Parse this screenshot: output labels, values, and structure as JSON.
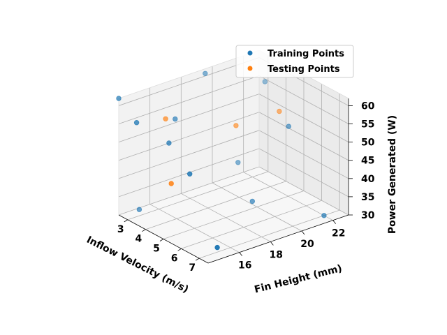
{
  "chart_data": {
    "type": "scatter3d",
    "title": "",
    "xlabel": "Inflow Velocity (m/s)",
    "ylabel": "Fin Height (mm)",
    "zlabel": "Power Generated (W)",
    "xlim": [
      2.5,
      7.5
    ],
    "ylim": [
      14,
      23
    ],
    "zlim": [
      30,
      62
    ],
    "xticks": [
      3,
      4,
      5,
      6,
      7
    ],
    "yticks": [
      16,
      18,
      20,
      22
    ],
    "zticks": [
      30,
      35,
      40,
      45,
      50,
      55,
      60
    ],
    "grid": true,
    "legend": {
      "placement": "top-right"
    },
    "series": [
      {
        "name": "Training Points",
        "color": "#1f77b4",
        "points": [
          {
            "x": 2.5,
            "y": 14,
            "z": 62
          },
          {
            "x": 2.6,
            "y": 15.2,
            "z": 30
          },
          {
            "x": 3.5,
            "y": 14,
            "z": 58
          },
          {
            "x": 4.0,
            "y": 15.5,
            "z": 51.5
          },
          {
            "x": 3.3,
            "y": 16.7,
            "z": 54.5
          },
          {
            "x": 2.8,
            "y": 19.2,
            "z": 62
          },
          {
            "x": 5.6,
            "y": 15.0,
            "z": 48
          },
          {
            "x": 3.5,
            "y": 20.5,
            "z": 37.5
          },
          {
            "x": 7.4,
            "y": 14.7,
            "z": 33
          },
          {
            "x": 5.0,
            "y": 19.7,
            "z": 32
          },
          {
            "x": 5.2,
            "y": 21.8,
            "z": 50
          },
          {
            "x": 7.0,
            "y": 22.0,
            "z": 30
          },
          {
            "x": 3.0,
            "y": 22.8,
            "z": 55
          }
        ]
      },
      {
        "name": "Testing Points",
        "color": "#ff7f0e",
        "points": [
          {
            "x": 3.2,
            "y": 16.2,
            "z": 55
          },
          {
            "x": 5.0,
            "y": 14.5,
            "z": 44.5
          },
          {
            "x": 4.0,
            "y": 19.8,
            "z": 50
          },
          {
            "x": 4.5,
            "y": 22.0,
            "z": 52
          }
        ]
      }
    ]
  }
}
